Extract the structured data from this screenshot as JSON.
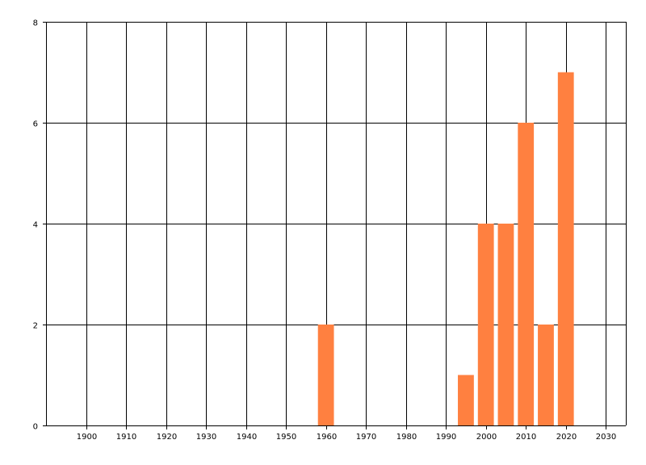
{
  "chart_data": {
    "type": "bar",
    "title": "",
    "xlabel": "",
    "ylabel": "",
    "x": [
      1960,
      1995,
      2000,
      2005,
      2010,
      2015,
      2020
    ],
    "values": [
      2,
      1,
      4,
      4,
      6,
      2,
      7
    ],
    "bar_width_years": 4,
    "xlim": [
      1890,
      2035
    ],
    "ylim": [
      0,
      8
    ],
    "xticks": [
      1900,
      1910,
      1920,
      1930,
      1940,
      1950,
      1960,
      1970,
      1980,
      1990,
      2000,
      2010,
      2020,
      2030
    ],
    "yticks": [
      0,
      2,
      4,
      6,
      8
    ],
    "grid": true,
    "bar_color": "#FF8040",
    "grid_color": "#000000"
  }
}
